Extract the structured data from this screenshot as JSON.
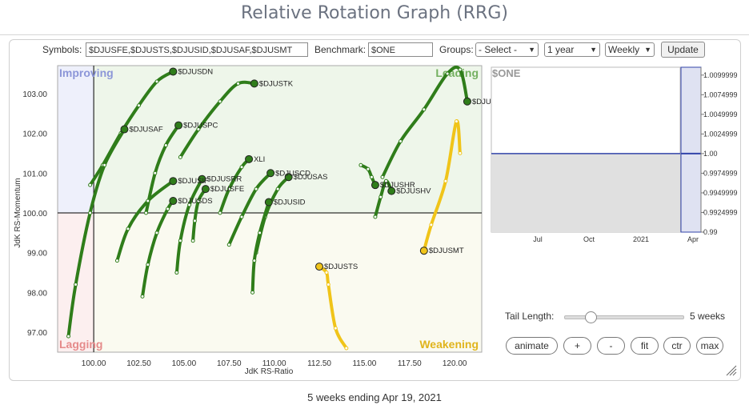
{
  "title": "Relative Rotation Graph (RRG)",
  "controls": {
    "symbols_label": "Symbols:",
    "symbols_value": "$DJUSFE,$DJUSTS,$DJUSID,$DJUSAF,$DJUSMT",
    "benchmark_label": "Benchmark:",
    "benchmark_value": "$ONE",
    "groups_label": "Groups:",
    "groups_value": "- Select -",
    "period_value": "1 year",
    "frequency_value": "Weekly",
    "update_label": "Update"
  },
  "chart_data": {
    "type": "scatter",
    "xlabel": "JdK RS-Ratio",
    "ylabel": "JdK RS-Momentum",
    "xlim": [
      98,
      121.5
    ],
    "ylim": [
      96.5,
      103.7
    ],
    "x_ticks": [
      "100.00",
      "102.50",
      "105.00",
      "107.50",
      "110.00",
      "112.50",
      "115.00",
      "117.50",
      "120.00"
    ],
    "y_ticks": [
      "97.00",
      "98.00",
      "99.00",
      "100.00",
      "101.00",
      "102.00",
      "103.00"
    ],
    "quadrants": {
      "improving": "Improving",
      "leading": "Leading",
      "lagging": "Lagging",
      "weakening": "Weakening"
    },
    "colors": {
      "green": "#2f7d1a",
      "yellow": "#f0c419",
      "improving_bg": "#eef0fb",
      "leading_bg": "#eef6ea",
      "lagging_bg": "#fcefef",
      "weakening_bg": "#fafaf0",
      "improving_text": "#8c96d8",
      "leading_text": "#74b060",
      "lagging_text": "#e58a8a",
      "weakening_text": "#e0b41c"
    },
    "series": [
      {
        "name": "$DJUSDN",
        "color": "green",
        "points": [
          [
            99.8,
            100.7
          ],
          [
            100.5,
            101.2
          ],
          [
            101.5,
            102.0
          ],
          [
            102.5,
            102.7
          ],
          [
            103.5,
            103.3
          ],
          [
            104.4,
            103.55
          ]
        ]
      },
      {
        "name": "$DJUSTK",
        "color": "green",
        "points": [
          [
            104.8,
            101.4
          ],
          [
            105.8,
            102.1
          ],
          [
            107.0,
            102.8
          ],
          [
            108.0,
            103.25
          ],
          [
            108.9,
            103.25
          ]
        ]
      },
      {
        "name": "$DJUSAF",
        "color": "green",
        "points": [
          [
            98.6,
            96.9
          ],
          [
            99.0,
            98.2
          ],
          [
            99.8,
            100.0
          ],
          [
            100.6,
            101.2
          ],
          [
            101.7,
            102.1
          ]
        ]
      },
      {
        "name": "$DJUSPC",
        "color": "green",
        "points": [
          [
            102.9,
            100.0
          ],
          [
            103.4,
            101.0
          ],
          [
            104.0,
            101.7
          ],
          [
            104.7,
            102.2
          ]
        ]
      },
      {
        "name": "XLI",
        "color": "green",
        "points": [
          [
            107.0,
            100.0
          ],
          [
            107.5,
            100.6
          ],
          [
            108.2,
            101.15
          ],
          [
            108.6,
            101.35
          ]
        ]
      },
      {
        "name": "$DJUSCD",
        "color": "green",
        "points": [
          [
            107.5,
            99.2
          ],
          [
            108.2,
            99.9
          ],
          [
            109.0,
            100.6
          ],
          [
            109.8,
            101.0
          ]
        ]
      },
      {
        "name": "$DJUSAS",
        "color": "green",
        "points": [
          [
            109.0,
            99.0
          ],
          [
            109.5,
            99.9
          ],
          [
            110.2,
            100.6
          ],
          [
            110.8,
            100.9
          ]
        ]
      },
      {
        "name": "$DJUSFE",
        "color": "green",
        "points": [
          [
            105.5,
            99.3
          ],
          [
            105.6,
            99.8
          ],
          [
            105.8,
            100.3
          ],
          [
            106.2,
            100.6
          ]
        ]
      },
      {
        "name": "$DJUSRR",
        "color": "green",
        "points": [
          [
            104.6,
            98.5
          ],
          [
            104.8,
            99.3
          ],
          [
            105.3,
            100.2
          ],
          [
            106.0,
            100.85
          ]
        ]
      },
      {
        "name": "$DJUSIF",
        "color": "green",
        "points": [
          [
            101.3,
            98.8
          ],
          [
            101.9,
            99.6
          ],
          [
            103.0,
            100.3
          ],
          [
            104.4,
            100.8
          ]
        ]
      },
      {
        "name": "$DJUSDS",
        "color": "green",
        "points": [
          [
            102.7,
            97.9
          ],
          [
            103.0,
            98.7
          ],
          [
            103.5,
            99.5
          ],
          [
            104.1,
            100.1
          ],
          [
            104.4,
            100.3
          ]
        ]
      },
      {
        "name": "$DJUSID",
        "color": "green",
        "points": [
          [
            108.8,
            98.0
          ],
          [
            108.9,
            98.8
          ],
          [
            109.2,
            99.5
          ],
          [
            109.7,
            100.27
          ]
        ]
      },
      {
        "name": "$DJUSHR",
        "color": "green",
        "points": [
          [
            114.8,
            101.2
          ],
          [
            115.2,
            101.1
          ],
          [
            115.4,
            100.9
          ],
          [
            115.6,
            100.7
          ]
        ]
      },
      {
        "name": "$DJUSHV",
        "color": "green",
        "points": [
          [
            115.6,
            99.9
          ],
          [
            115.9,
            100.4
          ],
          [
            116.2,
            100.8
          ],
          [
            116.5,
            100.55
          ]
        ]
      },
      {
        "name": "$DJUSAR",
        "color": "green",
        "points": [
          [
            116.0,
            100.9
          ],
          [
            117.0,
            101.8
          ],
          [
            118.3,
            102.6
          ],
          [
            119.6,
            103.5
          ],
          [
            120.3,
            103.6
          ],
          [
            120.7,
            102.8
          ]
        ]
      },
      {
        "name": "$DJUSMT",
        "color": "yellow",
        "points": [
          [
            120.3,
            101.5
          ],
          [
            120.1,
            102.3
          ],
          [
            119.5,
            100.8
          ],
          [
            118.7,
            99.7
          ],
          [
            118.3,
            99.05
          ]
        ]
      },
      {
        "name": "$DJUSTS",
        "color": "yellow",
        "points": [
          [
            114.0,
            96.6
          ],
          [
            113.4,
            97.1
          ],
          [
            113.0,
            98.2
          ],
          [
            112.9,
            98.5
          ],
          [
            112.5,
            98.65
          ]
        ]
      }
    ],
    "mini_chart": {
      "title": "$ONE",
      "x_ticks": [
        "Jul",
        "Oct",
        "2021",
        "Apr"
      ],
      "y_ticks": [
        "1.0099999",
        "1.0074999",
        "1.0049999",
        "1.0024999",
        "1.00",
        "0.9974999",
        "0.9949999",
        "0.9924999",
        "0.99"
      ],
      "ylim": [
        0.99,
        1.011
      ],
      "value": 1.0
    }
  },
  "tail": {
    "label": "Tail Length:",
    "value_label": "5 weeks",
    "value": 5,
    "max": 20
  },
  "buttons": {
    "animate": "animate",
    "plus": "+",
    "minus": "-",
    "fit": "fit",
    "ctr": "ctr",
    "max": "max"
  },
  "footer": "5 weeks ending Apr 19, 2021"
}
